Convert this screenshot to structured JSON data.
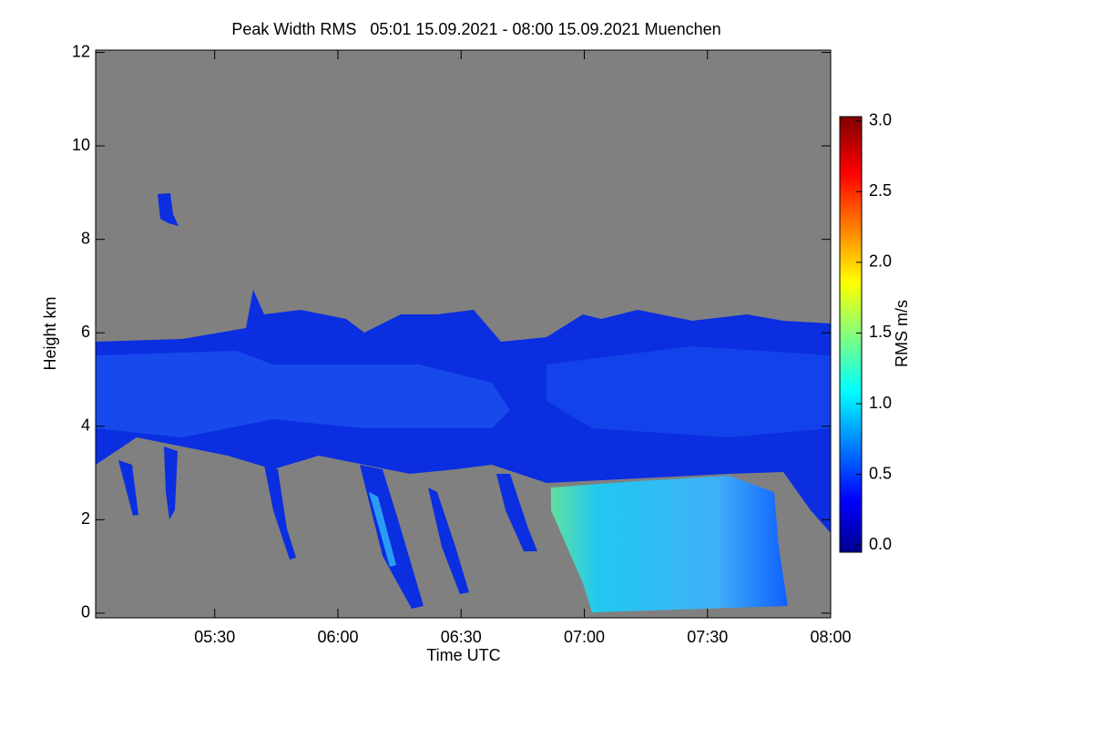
{
  "chart_data": {
    "type": "heatmap",
    "title": "Peak Width RMS   05:01 15.09.2021 - 08:00 15.09.2021 Muenchen",
    "x_label": "Time UTC",
    "y_label": "Height km",
    "colorbar_label": "RMS m/s",
    "xlim": [
      301,
      480
    ],
    "xticks": [
      {
        "value": 330,
        "label": "05:30"
      },
      {
        "value": 360,
        "label": "06:00"
      },
      {
        "value": 390,
        "label": "06:30"
      },
      {
        "value": 420,
        "label": "07:00"
      },
      {
        "value": 450,
        "label": "07:30"
      },
      {
        "value": 480,
        "label": "08:00"
      }
    ],
    "ylim": [
      -0.1,
      12.05
    ],
    "yticks": [
      0,
      2,
      4,
      6,
      8,
      10,
      12
    ],
    "clim": [
      -0.05,
      3.03
    ],
    "cticks": [
      {
        "value": 0,
        "label": "0.0"
      },
      0.5,
      {
        "value": 1,
        "label": "1.0"
      },
      1.5,
      {
        "value": 2,
        "label": "2.0"
      },
      2.5,
      {
        "value": 3,
        "label": "3.0"
      }
    ],
    "colormap": "jet",
    "background_color": "#808080"
  }
}
